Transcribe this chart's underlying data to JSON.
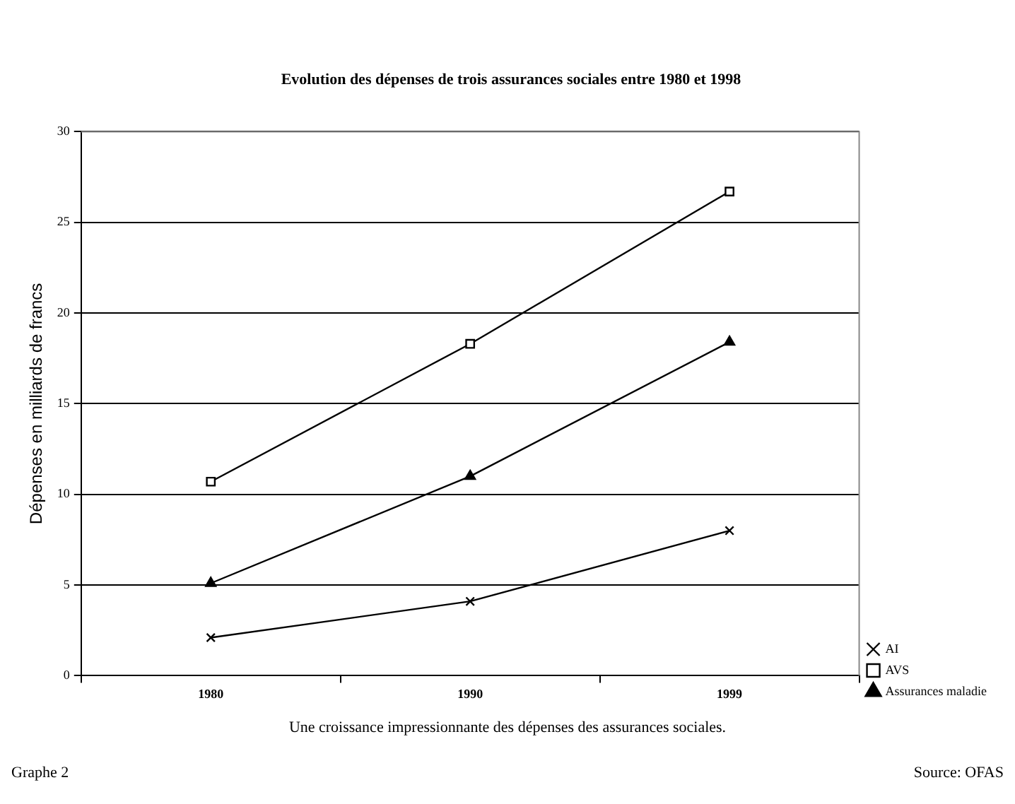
{
  "chart_data": {
    "type": "line",
    "title": "Evolution des dépenses de trois assurances sociales entre 1980 et 1998",
    "ylabel": "Dépenses en milliards de francs",
    "categories": [
      "1980",
      "1990",
      "1999"
    ],
    "series": [
      {
        "name": "AI",
        "color": "#000000",
        "marker": "cross",
        "values": [
          2.1,
          4.1,
          8.0
        ]
      },
      {
        "name": "AVS",
        "color": "#000000",
        "marker": "square",
        "values": [
          10.7,
          18.3,
          26.7
        ]
      },
      {
        "name": "Assurances maladie",
        "color": "#000000",
        "marker": "triangle",
        "values": [
          5.1,
          11.0,
          18.4
        ]
      }
    ],
    "ylim": [
      0,
      30
    ],
    "yticks": [
      0,
      5,
      10,
      15,
      20,
      25,
      30
    ],
    "grid": "y",
    "legend": "right",
    "line_style": "solid",
    "annotations": [
      "Une croissance impressionnante des dépenses des assurances sociales.",
      "Graphe 2",
      "Source: OFAS"
    ]
  }
}
